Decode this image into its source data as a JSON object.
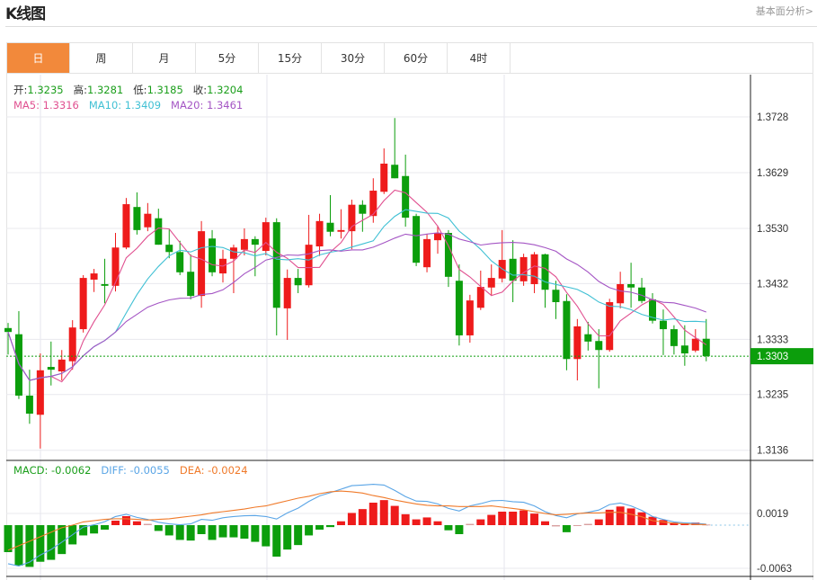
{
  "header": {
    "title": "K线图",
    "more_link": "基本面分析>"
  },
  "tabs": [
    {
      "label": "日",
      "active": true
    },
    {
      "label": "周",
      "active": false
    },
    {
      "label": "月",
      "active": false
    },
    {
      "label": "5分",
      "active": false
    },
    {
      "label": "15分",
      "active": false
    },
    {
      "label": "30分",
      "active": false
    },
    {
      "label": "60分",
      "active": false
    },
    {
      "label": "4时",
      "active": false
    }
  ],
  "ohlc_legend": {
    "open_label": "开:",
    "open": "1.3235",
    "high_label": "高:",
    "high": "1.3281",
    "low_label": "低:",
    "low": "1.3185",
    "close_label": "收:",
    "close": "1.3204"
  },
  "ma_legend": {
    "ma5": "MA5: 1.3316",
    "ma10": "MA10: 1.3409",
    "ma20": "MA20: 1.3461"
  },
  "macd_legend": {
    "macd": "MACD: -0.0062",
    "diff": "DIFF: -0.0055",
    "dea": "DEA: -0.0024"
  },
  "colors": {
    "up": "#ee1b1b",
    "down": "#0c9e0c",
    "ma5": "#e05090",
    "ma10": "#40c0d4",
    "ma20": "#a455c4",
    "diff": "#5aa5e6",
    "dea": "#f07a2a",
    "active_tab": "#f2893b",
    "last_price": "#0c9e0c"
  },
  "chart_data": [
    {
      "type": "candlestick",
      "title": "",
      "y_ticks": [
        "1.3728",
        "1.3629",
        "1.3530",
        "1.3432",
        "1.3333",
        "1.3235",
        "1.3136"
      ],
      "ylim": [
        1.3128,
        1.379
      ],
      "grid": true,
      "last_price": "1.3303",
      "moving_averages": [
        5,
        10,
        20
      ],
      "candles": [
        [
          1.3353,
          1.3362,
          1.3306,
          1.3346
        ],
        [
          1.3342,
          1.3383,
          1.3227,
          1.3233
        ],
        [
          1.3233,
          1.3279,
          1.3183,
          1.3201
        ],
        [
          1.3199,
          1.3308,
          1.3139,
          1.3278
        ],
        [
          1.3284,
          1.3329,
          1.3251,
          1.3279
        ],
        [
          1.3276,
          1.3314,
          1.326,
          1.3297
        ],
        [
          1.3294,
          1.3367,
          1.3279,
          1.3354
        ],
        [
          1.3351,
          1.3447,
          1.3345,
          1.3442
        ],
        [
          1.3439,
          1.3458,
          1.3417,
          1.345
        ],
        [
          1.3431,
          1.3476,
          1.3397,
          1.3428
        ],
        [
          1.3428,
          1.3522,
          1.3418,
          1.3496
        ],
        [
          1.3496,
          1.3584,
          1.3493,
          1.3573
        ],
        [
          1.3568,
          1.3594,
          1.3519,
          1.3527
        ],
        [
          1.3532,
          1.3575,
          1.3525,
          1.3556
        ],
        [
          1.3548,
          1.3565,
          1.3501,
          1.3501
        ],
        [
          1.3501,
          1.3528,
          1.3477,
          1.3488
        ],
        [
          1.3488,
          1.3508,
          1.3447,
          1.3452
        ],
        [
          1.3453,
          1.3484,
          1.3404,
          1.341
        ],
        [
          1.341,
          1.3543,
          1.3389,
          1.3525
        ],
        [
          1.3512,
          1.3527,
          1.3445,
          1.3452
        ],
        [
          1.345,
          1.3492,
          1.3434,
          1.3476
        ],
        [
          1.3476,
          1.3501,
          1.3415,
          1.3496
        ],
        [
          1.3492,
          1.353,
          1.3482,
          1.3511
        ],
        [
          1.3511,
          1.3516,
          1.3445,
          1.3501
        ],
        [
          1.349,
          1.3549,
          1.3482,
          1.3541
        ],
        [
          1.3541,
          1.3548,
          1.334,
          1.3389
        ],
        [
          1.3388,
          1.3457,
          1.3332,
          1.3442
        ],
        [
          1.3442,
          1.3458,
          1.3415,
          1.3429
        ],
        [
          1.3429,
          1.3554,
          1.3425,
          1.3501
        ],
        [
          1.3498,
          1.3556,
          1.3481,
          1.3543
        ],
        [
          1.354,
          1.3589,
          1.3516,
          1.3524
        ],
        [
          1.3524,
          1.3564,
          1.3512,
          1.3527
        ],
        [
          1.3525,
          1.3581,
          1.3493,
          1.3572
        ],
        [
          1.3572,
          1.358,
          1.3524,
          1.3556
        ],
        [
          1.3552,
          1.3619,
          1.354,
          1.3597
        ],
        [
          1.3595,
          1.3672,
          1.3591,
          1.3645
        ],
        [
          1.3643,
          1.3726,
          1.3619,
          1.3619
        ],
        [
          1.3623,
          1.3661,
          1.3533,
          1.3549
        ],
        [
          1.3552,
          1.3556,
          1.3463,
          1.3469
        ],
        [
          1.3461,
          1.352,
          1.3452,
          1.3511
        ],
        [
          1.3509,
          1.3535,
          1.3485,
          1.3522
        ],
        [
          1.3522,
          1.3527,
          1.3426,
          1.3444
        ],
        [
          1.3437,
          1.3466,
          1.3322,
          1.334
        ],
        [
          1.334,
          1.3412,
          1.3327,
          1.3402
        ],
        [
          1.3389,
          1.3455,
          1.3385,
          1.3426
        ],
        [
          1.3425,
          1.3466,
          1.341,
          1.3442
        ],
        [
          1.3441,
          1.3527,
          1.3434,
          1.3474
        ],
        [
          1.3476,
          1.3509,
          1.3399,
          1.3437
        ],
        [
          1.3436,
          1.3485,
          1.3428,
          1.3479
        ],
        [
          1.3431,
          1.3488,
          1.3415,
          1.3484
        ],
        [
          1.3484,
          1.3485,
          1.3389,
          1.3421
        ],
        [
          1.3421,
          1.3437,
          1.3369,
          1.3399
        ],
        [
          1.3401,
          1.3413,
          1.3278,
          1.3298
        ],
        [
          1.3298,
          1.3369,
          1.326,
          1.3356
        ],
        [
          1.3342,
          1.3364,
          1.3313,
          1.3329
        ],
        [
          1.333,
          1.3351,
          1.3246,
          1.3314
        ],
        [
          1.3314,
          1.3405,
          1.3311,
          1.3399
        ],
        [
          1.3397,
          1.3453,
          1.3388,
          1.3431
        ],
        [
          1.3431,
          1.3469,
          1.3389,
          1.3425
        ],
        [
          1.3425,
          1.3442,
          1.3397,
          1.3401
        ],
        [
          1.3404,
          1.3415,
          1.3361,
          1.3366
        ],
        [
          1.3366,
          1.3386,
          1.3305,
          1.3351
        ],
        [
          1.3351,
          1.3358,
          1.3306,
          1.3321
        ],
        [
          1.3322,
          1.3358,
          1.3286,
          1.3308
        ],
        [
          1.3313,
          1.3351,
          1.331,
          1.3334
        ],
        [
          1.3334,
          1.3369,
          1.3294,
          1.3303
        ]
      ]
    },
    {
      "type": "bar",
      "title": "",
      "y_ticks": [
        "0.0019",
        "-0.0063"
      ],
      "grid": true,
      "macd_hist": [
        -0.0042,
        -0.0063,
        -0.0065,
        -0.0057,
        -0.0054,
        -0.0045,
        -0.003,
        -0.0016,
        -0.0013,
        -0.0007,
        0.0007,
        0.0014,
        0.0006,
        0.0002,
        -0.0009,
        -0.0016,
        -0.0023,
        -0.0024,
        -0.0014,
        -0.0023,
        -0.0019,
        -0.0019,
        -0.0021,
        -0.0026,
        -0.0033,
        -0.0049,
        -0.0038,
        -0.0031,
        -0.0016,
        -0.0007,
        -0.0003,
        0.0006,
        0.0019,
        0.0025,
        0.0035,
        0.0039,
        0.003,
        0.0017,
        0.0009,
        0.0012,
        0.0006,
        -0.0008,
        -0.0014,
        0.0002,
        0.0009,
        0.0016,
        0.0021,
        0.0021,
        0.0023,
        0.0018,
        0.0006,
        -0.0002,
        -0.0011,
        -0.0001,
        0.0002,
        0.0009,
        0.0024,
        0.0029,
        0.0026,
        0.002,
        0.0013,
        0.0008,
        0.0004,
        0.0003,
        0.0004,
        0.0001
      ],
      "dea": [
        -0.0039,
        -0.0032,
        -0.0025,
        -0.0018,
        -0.0011,
        -0.0004,
        0.0,
        0.0005,
        0.0007,
        0.0009,
        0.001,
        0.001,
        0.0009,
        0.0008,
        0.0009,
        0.001,
        0.0012,
        0.0014,
        0.0016,
        0.0019,
        0.0021,
        0.0023,
        0.0025,
        0.0028,
        0.003,
        0.0034,
        0.0038,
        0.0042,
        0.0045,
        0.0049,
        0.0052,
        0.0053,
        0.0052,
        0.005,
        0.0046,
        0.0043,
        0.0039,
        0.0036,
        0.0033,
        0.0031,
        0.003,
        0.003,
        0.0029,
        0.0029,
        0.0029,
        0.003,
        0.0028,
        0.0026,
        0.0024,
        0.0021,
        0.0018,
        0.0016,
        0.0017,
        0.0018,
        0.0019,
        0.0019,
        0.002,
        0.002,
        0.0017,
        0.0013,
        0.0007,
        0.0005,
        0.0003,
        0.0002,
        0.0001,
        0.0001
      ]
    }
  ]
}
